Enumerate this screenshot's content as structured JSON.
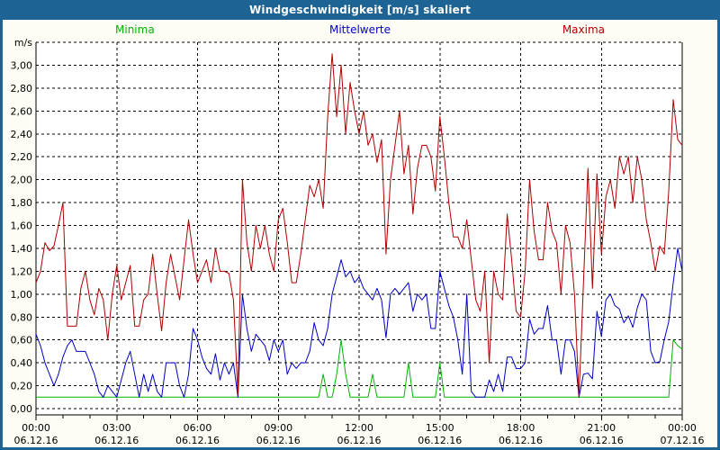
{
  "window": {
    "title": "Windgeschwindigkeit [m/s] skaliert"
  },
  "legend": {
    "minima": "Minima",
    "mittelwerte": "Mittelwerte",
    "maxima": "Maxima"
  },
  "colors": {
    "titlebar": "#1d6494",
    "frame": "#1d6494",
    "page_bg": "#fdfdf6",
    "plot_bg": "#ffffff",
    "grid": "#000000",
    "minima": "#00b400",
    "mittelwerte": "#0000c0",
    "maxima": "#b00000"
  },
  "chart_data": {
    "type": "line",
    "title": "Windgeschwindigkeit [m/s] skaliert",
    "ylabel": "m/s",
    "unit_label": "m/s",
    "ylim": [
      0,
      3.2
    ],
    "y_tick_step": 0.2,
    "y_tick_labels": [
      "0,00",
      "0,20",
      "0,40",
      "0,60",
      "0,80",
      "1,00",
      "1,20",
      "1,40",
      "1,60",
      "1,80",
      "2,00",
      "2,20",
      "2,40",
      "2,60",
      "2,80",
      "3,00"
    ],
    "grid": "dashed",
    "legend_position": "top",
    "x_step_minutes": 10,
    "x_total_hours": 24,
    "x_major_tick_hours": 3,
    "x_minor_tick_hours": 1,
    "x_ticks": [
      {
        "time": "00:00",
        "date": "06.12.16"
      },
      {
        "time": "03:00",
        "date": "06.12.16"
      },
      {
        "time": "06:00",
        "date": "06.12.16"
      },
      {
        "time": "09:00",
        "date": "06.12.16"
      },
      {
        "time": "12:00",
        "date": "06.12.16"
      },
      {
        "time": "15:00",
        "date": "06.12.16"
      },
      {
        "time": "18:00",
        "date": "06.12.16"
      },
      {
        "time": "21:00",
        "date": "06.12.16"
      },
      {
        "time": "00:00",
        "date": "07.12.16"
      }
    ],
    "series": [
      {
        "name": "Minima",
        "color": "#00b400",
        "values": [
          0.1,
          0.1,
          0.1,
          0.1,
          0.1,
          0.1,
          0.1,
          0.1,
          0.1,
          0.1,
          0.1,
          0.1,
          0.1,
          0.1,
          0.1,
          0.1,
          0.1,
          0.1,
          0.1,
          0.1,
          0.1,
          0.1,
          0.1,
          0.1,
          0.1,
          0.1,
          0.1,
          0.1,
          0.1,
          0.1,
          0.1,
          0.1,
          0.1,
          0.1,
          0.1,
          0.1,
          0.1,
          0.1,
          0.1,
          0.1,
          0.1,
          0.1,
          0.1,
          0.1,
          0.1,
          0.1,
          0.1,
          0.1,
          0.1,
          0.1,
          0.1,
          0.1,
          0.1,
          0.1,
          0.1,
          0.1,
          0.1,
          0.1,
          0.1,
          0.1,
          0.1,
          0.1,
          0.1,
          0.1,
          0.3,
          0.1,
          0.1,
          0.3,
          0.6,
          0.3,
          0.1,
          0.1,
          0.1,
          0.1,
          0.1,
          0.3,
          0.1,
          0.1,
          0.1,
          0.1,
          0.1,
          0.1,
          0.1,
          0.4,
          0.1,
          0.1,
          0.1,
          0.1,
          0.1,
          0.1,
          0.4,
          0.1,
          0.1,
          0.1,
          0.1,
          0.1,
          0.1,
          0.1,
          0.1,
          0.1,
          0.1,
          0.1,
          0.1,
          0.1,
          0.1,
          0.1,
          0.1,
          0.1,
          0.1,
          0.1,
          0.1,
          0.1,
          0.1,
          0.1,
          0.1,
          0.1,
          0.1,
          0.1,
          0.1,
          0.1,
          0.1,
          0.1,
          0.1,
          0.1,
          0.1,
          0.1,
          0.1,
          0.1,
          0.1,
          0.1,
          0.1,
          0.1,
          0.1,
          0.1,
          0.1,
          0.1,
          0.1,
          0.1,
          0.1,
          0.1,
          0.1,
          0.1,
          0.6,
          0.55,
          0.52
        ]
      },
      {
        "name": "Mittelwerte",
        "color": "#0000c0",
        "values": [
          0.65,
          0.55,
          0.4,
          0.3,
          0.2,
          0.3,
          0.45,
          0.55,
          0.6,
          0.5,
          0.5,
          0.5,
          0.4,
          0.3,
          0.15,
          0.1,
          0.2,
          0.15,
          0.1,
          0.25,
          0.4,
          0.5,
          0.3,
          0.1,
          0.3,
          0.15,
          0.3,
          0.15,
          0.1,
          0.4,
          0.4,
          0.4,
          0.2,
          0.1,
          0.3,
          0.7,
          0.6,
          0.45,
          0.35,
          0.3,
          0.48,
          0.25,
          0.4,
          0.3,
          0.4,
          0.1,
          1.0,
          0.7,
          0.5,
          0.65,
          0.6,
          0.55,
          0.42,
          0.6,
          0.5,
          0.6,
          0.3,
          0.4,
          0.35,
          0.4,
          0.4,
          0.5,
          0.75,
          0.6,
          0.55,
          0.7,
          1.0,
          1.15,
          1.3,
          1.15,
          1.2,
          1.1,
          1.15,
          1.05,
          1.0,
          0.95,
          1.05,
          0.95,
          0.62,
          1.0,
          1.05,
          1.0,
          1.05,
          1.1,
          0.85,
          1.0,
          0.95,
          1.0,
          0.7,
          0.7,
          1.2,
          1.05,
          0.9,
          0.8,
          0.6,
          0.3,
          1.0,
          0.15,
          0.1,
          0.1,
          0.1,
          0.25,
          0.15,
          0.3,
          0.15,
          0.45,
          0.45,
          0.35,
          0.35,
          0.4,
          0.78,
          0.65,
          0.7,
          0.7,
          0.9,
          0.6,
          0.6,
          0.3,
          0.6,
          0.6,
          0.5,
          0.1,
          0.3,
          0.31,
          0.26,
          0.85,
          0.63,
          0.95,
          1.0,
          0.9,
          0.87,
          0.75,
          0.81,
          0.71,
          0.88,
          1.0,
          0.95,
          0.5,
          0.4,
          0.41,
          0.6,
          0.76,
          1.1,
          1.4,
          1.2
        ]
      },
      {
        "name": "Maxima",
        "color": "#b00000",
        "values": [
          1.1,
          1.2,
          1.45,
          1.38,
          1.42,
          1.6,
          1.8,
          0.72,
          0.72,
          0.72,
          1.05,
          1.2,
          0.95,
          0.82,
          1.05,
          0.95,
          0.6,
          1.0,
          1.25,
          0.95,
          1.1,
          1.25,
          0.72,
          0.72,
          0.95,
          1.0,
          1.35,
          1.0,
          0.68,
          1.1,
          1.35,
          1.15,
          0.95,
          1.3,
          1.65,
          1.35,
          1.1,
          1.2,
          1.3,
          1.1,
          1.4,
          1.2,
          1.2,
          1.18,
          0.95,
          0.12,
          2.0,
          1.45,
          1.2,
          1.6,
          1.4,
          1.6,
          1.35,
          1.2,
          1.65,
          1.75,
          1.45,
          1.1,
          1.1,
          1.35,
          1.65,
          1.95,
          1.85,
          2.0,
          1.75,
          2.55,
          3.1,
          2.55,
          3.0,
          2.4,
          2.85,
          2.6,
          2.4,
          2.6,
          2.3,
          2.4,
          2.15,
          2.35,
          1.35,
          2.0,
          2.3,
          2.6,
          2.05,
          2.3,
          1.7,
          2.1,
          2.3,
          2.3,
          2.2,
          1.9,
          2.55,
          2.2,
          1.8,
          1.5,
          1.5,
          1.4,
          1.65,
          1.3,
          0.95,
          0.85,
          1.2,
          0.4,
          1.2,
          1.0,
          0.95,
          1.7,
          1.3,
          0.85,
          0.8,
          1.2,
          2.0,
          1.55,
          1.3,
          1.3,
          1.8,
          1.55,
          1.45,
          1.0,
          1.6,
          1.45,
          1.0,
          0.1,
          1.1,
          2.1,
          1.05,
          2.05,
          1.35,
          1.85,
          2.0,
          1.75,
          2.2,
          2.05,
          2.2,
          1.8,
          2.2,
          2.0,
          1.65,
          1.45,
          1.2,
          1.42,
          1.35,
          1.9,
          2.7,
          2.35,
          2.3
        ]
      }
    ]
  }
}
